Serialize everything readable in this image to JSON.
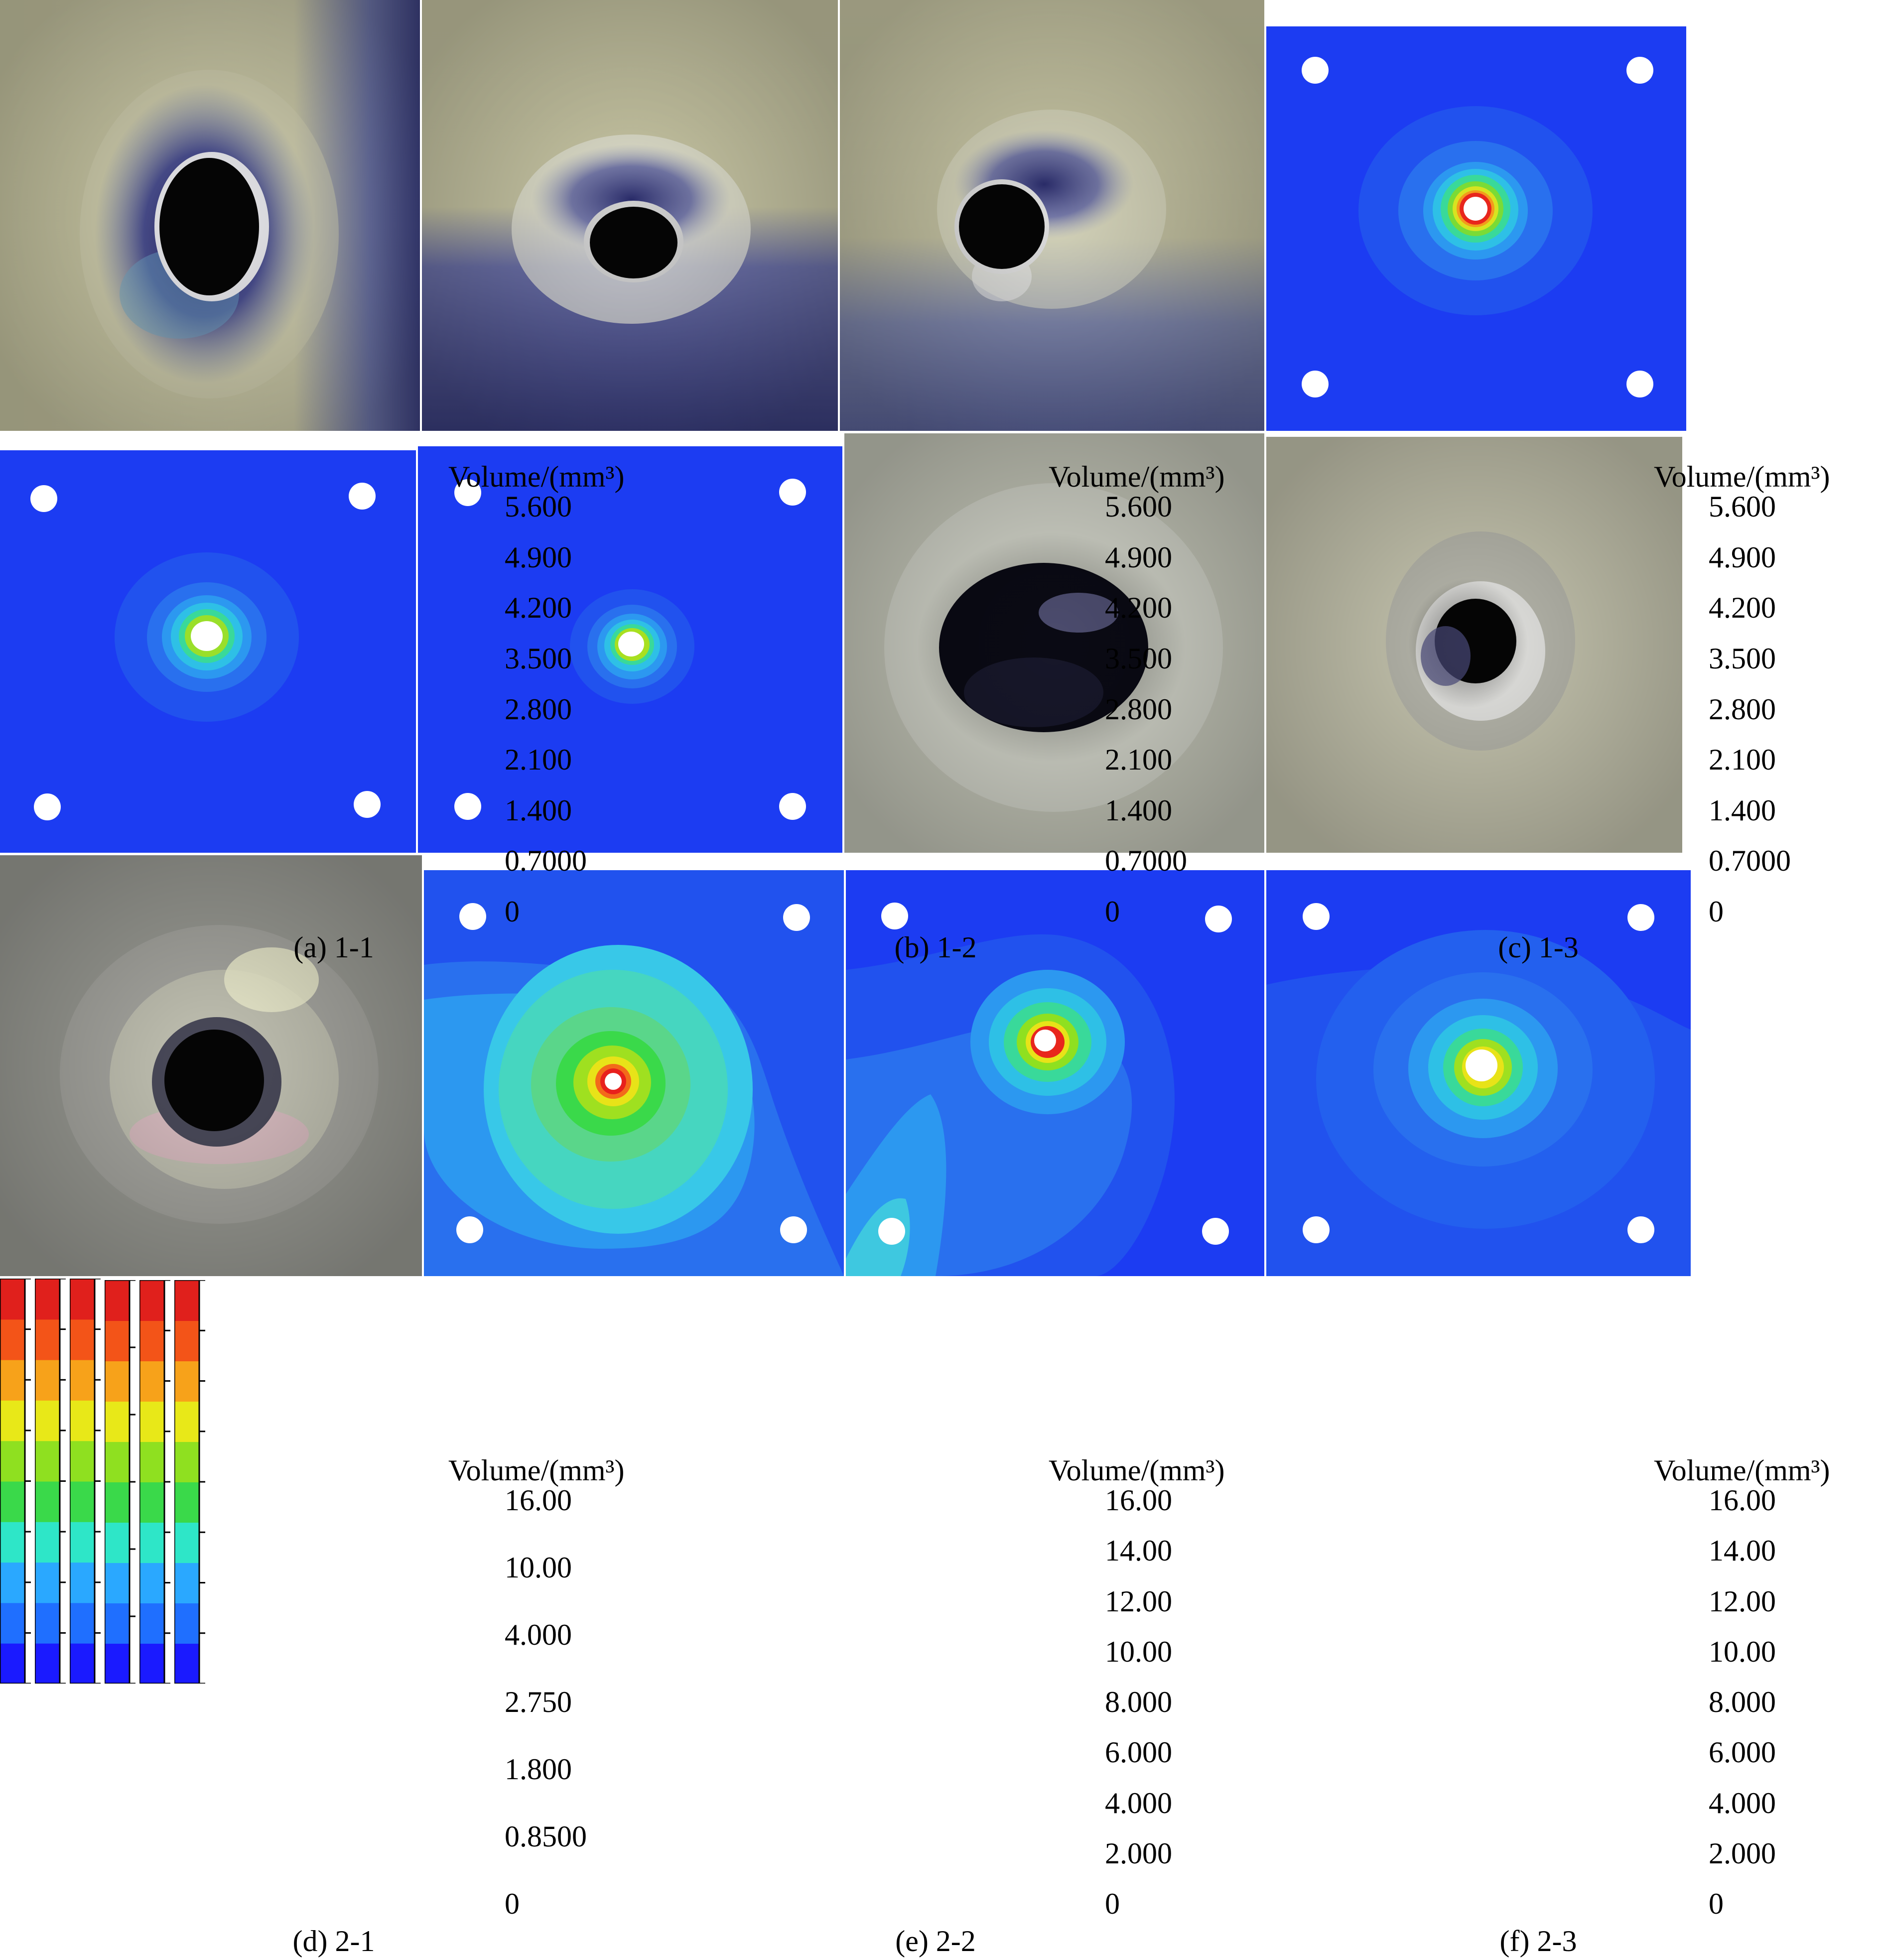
{
  "colorbar_title": "Volume/(mm³)",
  "scales": {
    "row1": {
      "colors": [
        "#1a1aff",
        "#1f6fff",
        "#2aa8ff",
        "#2ee6c8",
        "#3ad94a",
        "#8fe020",
        "#e8e818",
        "#f7a21a",
        "#f35418",
        "#e0201c"
      ]
    },
    "row2": {
      "colors": [
        "#1a1aff",
        "#1f6fff",
        "#2aa8ff",
        "#2ee6c8",
        "#3ad94a",
        "#8fe020",
        "#e8e818",
        "#f7a21a",
        "#f35418",
        "#e0201c"
      ]
    }
  },
  "panels": [
    {
      "id": "a",
      "caption": "(a) 1-1",
      "ticks": [
        "5.600",
        "4.900",
        "4.200",
        "3.500",
        "2.800",
        "2.100",
        "1.400",
        "0.7000",
        "0"
      ]
    },
    {
      "id": "b",
      "caption": "(b) 1-2",
      "ticks": [
        "5.600",
        "4.900",
        "4.200",
        "3.500",
        "2.800",
        "2.100",
        "1.400",
        "0.7000",
        "0"
      ]
    },
    {
      "id": "c",
      "caption": "(c) 1-3",
      "ticks": [
        "5.600",
        "4.900",
        "4.200",
        "3.500",
        "2.800",
        "2.100",
        "1.400",
        "0.7000",
        "0"
      ]
    },
    {
      "id": "d",
      "caption": "(d) 2-1",
      "ticks": [
        "16.00",
        "10.00",
        "4.000",
        "2.750",
        "1.800",
        "0.8500",
        "0"
      ]
    },
    {
      "id": "e",
      "caption": "(e) 2-2",
      "ticks": [
        "16.00",
        "14.00",
        "12.00",
        "10.00",
        "8.000",
        "6.000",
        "4.000",
        "2.000",
        "0"
      ]
    },
    {
      "id": "f",
      "caption": "(f) 2-3",
      "ticks": [
        "16.00",
        "14.00",
        "12.00",
        "10.00",
        "8.000",
        "6.000",
        "4.000",
        "2.000",
        "0"
      ]
    }
  ]
}
